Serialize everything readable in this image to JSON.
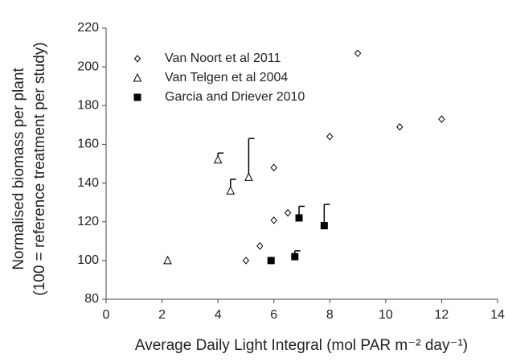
{
  "chart_data": {
    "type": "scatter",
    "x_label": "Average Daily Light Integral (mol PAR m⁻² day⁻¹)",
    "y_label": [
      "Normalised biomass per plant",
      "(100 = reference treatment per study)"
    ],
    "xlim": [
      0,
      14
    ],
    "xticks": [
      0,
      2,
      4,
      6,
      8,
      10,
      12,
      14
    ],
    "ylim": [
      80,
      220
    ],
    "yticks": [
      80,
      100,
      120,
      140,
      160,
      180,
      200,
      220
    ],
    "grid": false,
    "legend": "top-left",
    "series": [
      {
        "name": "Van Noort et al 2011",
        "color": "#000000",
        "marker": "diamond",
        "filled": false,
        "x": [
          5.0,
          5.5,
          6.0,
          6.5,
          6.0,
          8.0,
          9.0,
          10.5,
          12.0
        ],
        "values": [
          100,
          107.5,
          120.8,
          124.6,
          148,
          164,
          207,
          169,
          173
        ]
      },
      {
        "name": "Van Telgen et al 2004",
        "color": "#000000",
        "marker": "triangle",
        "filled": false,
        "x": [
          2.2,
          4.0,
          4.45,
          5.1
        ],
        "values": [
          100,
          152,
          136,
          143
        ],
        "errors": [
          null,
          3.5,
          6,
          20
        ]
      },
      {
        "name": "Garcia and Driever 2010",
        "color": "#000000",
        "marker": "square",
        "filled": true,
        "x": [
          5.9,
          6.75,
          6.9,
          7.8
        ],
        "values": [
          100,
          102,
          122,
          118
        ],
        "errors": [
          null,
          3,
          6,
          11
        ]
      }
    ]
  }
}
